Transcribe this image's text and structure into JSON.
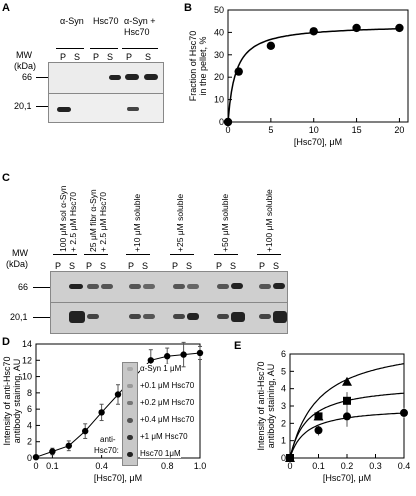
{
  "panels": {
    "A": {
      "letter": "A",
      "mw_label": "MW",
      "kda_label": "(kDa)",
      "groups": [
        "α-Syn",
        "Hsc70",
        "α-Syn +",
        "Hsc70"
      ],
      "lanes": [
        "P",
        "S",
        "P",
        "S",
        "P",
        "S"
      ],
      "markers": [
        "66",
        "20,1"
      ]
    },
    "B": {
      "letter": "B"
    },
    "C": {
      "letter": "C",
      "mw_label": "MW",
      "kda_label": "(kDa)",
      "conditions": [
        "100 μM sol α-Syn",
        "+ 2.5 μM Hsc70",
        "25 μM fibr α-Syn",
        "+ 2.5 μM Hsc70",
        "+10 μM soluble",
        "+25 μM soluble",
        "+50 μM soluble",
        "+100 μM soluble"
      ],
      "lanes": [
        "P",
        "S",
        "P",
        "S",
        "P",
        "S",
        "P",
        "S",
        "P",
        "S",
        "P",
        "S"
      ],
      "markers": [
        "66",
        "20,1"
      ]
    },
    "D": {
      "letter": "D",
      "inset_labels": [
        "α-Syn 1 μM",
        "+0.1 μM Hsc70",
        "+0.2 μM Hsc70",
        "+0.4 μM Hsc70",
        "+1 μM Hsc70",
        "Hsc70 1μM"
      ],
      "anti_label_1": "anti-",
      "anti_label_2": "Hsc70:"
    },
    "E": {
      "letter": "E"
    }
  },
  "chart_data": [
    {
      "panel": "B",
      "type": "scatter",
      "xlabel": "[Hsc70], μM",
      "ylabel": "Fraction of Hsc70 in the pellet, %",
      "xlim": [
        0,
        21
      ],
      "ylim": [
        0,
        50
      ],
      "xticks": [
        0,
        5,
        10,
        15,
        20
      ],
      "yticks": [
        0,
        10,
        20,
        30,
        40,
        50
      ],
      "series": [
        {
          "x": [
            0,
            1.25,
            5,
            10,
            15,
            20
          ],
          "y": [
            0,
            22.5,
            34,
            40.5,
            42,
            42
          ]
        }
      ],
      "fit_curve": true
    },
    {
      "panel": "D",
      "type": "line",
      "xlabel": "[Hsc70], μM",
      "ylabel": "Intensity of anti-Hsc70 antibody staining, AU",
      "xlim": [
        0,
        1.0
      ],
      "ylim": [
        0,
        14
      ],
      "xticks_labels": [
        "0",
        "0.1",
        "0.4",
        "0.8",
        "1.0"
      ],
      "yticks": [
        0,
        2,
        4,
        6,
        8,
        10,
        12,
        14
      ],
      "series": [
        {
          "x": [
            0,
            0.1,
            0.2,
            0.3,
            0.4,
            0.5,
            0.6,
            0.7,
            0.8,
            0.9,
            1.0
          ],
          "y": [
            0.1,
            0.8,
            1.5,
            3.3,
            5.6,
            7.8,
            10.0,
            12.0,
            12.5,
            12.7,
            12.9
          ],
          "err": [
            0.2,
            0.4,
            0.6,
            0.9,
            1.0,
            1.2,
            1.6,
            1.3,
            1.0,
            1.5,
            0.8
          ]
        }
      ]
    },
    {
      "panel": "E",
      "type": "scatter",
      "xlabel": "[Hsc70], μM",
      "ylabel": "Intensity of anti-Hsc70 antibody staining, AU",
      "xlim": [
        0,
        0.4
      ],
      "ylim": [
        0,
        6
      ],
      "xticks": [
        0,
        0.1,
        0.2,
        0.3,
        0.4
      ],
      "yticks": [
        0,
        1,
        2,
        3,
        4,
        5,
        6
      ],
      "series": [
        {
          "marker": "triangle",
          "x": [
            0,
            0.1,
            0.2
          ],
          "y": [
            0,
            2.4,
            4.4
          ],
          "err": [
            0,
            0.15,
            0.2
          ],
          "fit_asym": 6.8,
          "fit_k": 0.1
        },
        {
          "marker": "square",
          "x": [
            0,
            0.1,
            0.2
          ],
          "y": [
            0,
            2.4,
            3.3
          ],
          "err": [
            0,
            0.2,
            0.5
          ],
          "fit_asym": 4.3,
          "fit_k": 0.06
        },
        {
          "marker": "circle",
          "x": [
            0,
            0.1,
            0.2,
            0.4
          ],
          "y": [
            0,
            1.6,
            2.4,
            2.6
          ],
          "err": [
            0,
            0.3,
            0.6,
            0.3
          ],
          "fit_asym": 2.95,
          "fit_k": 0.055
        }
      ]
    }
  ]
}
